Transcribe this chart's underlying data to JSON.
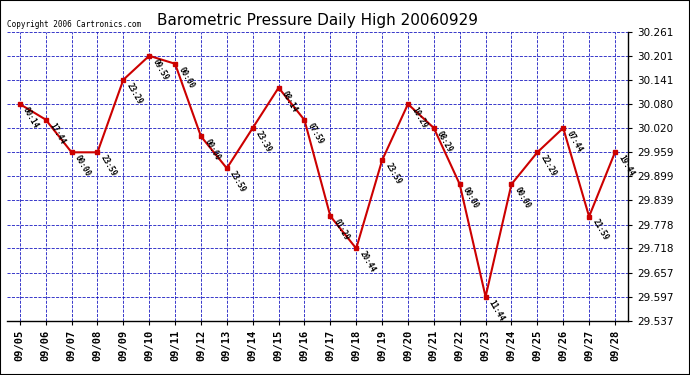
{
  "title": "Barometric Pressure Daily High 20060929",
  "copyright": "Copyright 2006 Cartronics.com",
  "dates": [
    "09/05",
    "09/06",
    "09/07",
    "09/08",
    "09/09",
    "09/10",
    "09/11",
    "09/12",
    "09/13",
    "09/14",
    "09/15",
    "09/16",
    "09/17",
    "09/18",
    "09/19",
    "09/20",
    "09/21",
    "09/22",
    "09/23",
    "09/24",
    "09/25",
    "09/26",
    "09/27",
    "09/28"
  ],
  "values": [
    30.08,
    30.041,
    29.959,
    29.959,
    30.141,
    30.201,
    30.181,
    29.999,
    29.919,
    30.02,
    30.121,
    30.04,
    29.799,
    29.718,
    29.939,
    30.08,
    30.02,
    29.879,
    29.597,
    29.879,
    29.959,
    30.02,
    29.798,
    29.959
  ],
  "times": [
    "00:14",
    "17:44",
    "00:00",
    "23:59",
    "23:29",
    "09:59",
    "00:00",
    "00:00",
    "23:59",
    "23:39",
    "08:14",
    "07:59",
    "01:29",
    "20:44",
    "23:59",
    "10:29",
    "08:29",
    "00:00",
    "11:44",
    "00:00",
    "22:29",
    "07:44",
    "21:59",
    "19:44"
  ],
  "ylim_min": 29.537,
  "ylim_max": 30.261,
  "yticks": [
    29.537,
    29.597,
    29.657,
    29.718,
    29.778,
    29.839,
    29.899,
    29.959,
    30.02,
    30.08,
    30.141,
    30.201,
    30.261
  ],
  "line_color": "#cc0000",
  "marker_color": "#cc0000",
  "background_color": "#ffffff",
  "grid_color": "#0000bb",
  "text_color": "#000000",
  "title_fontsize": 11
}
